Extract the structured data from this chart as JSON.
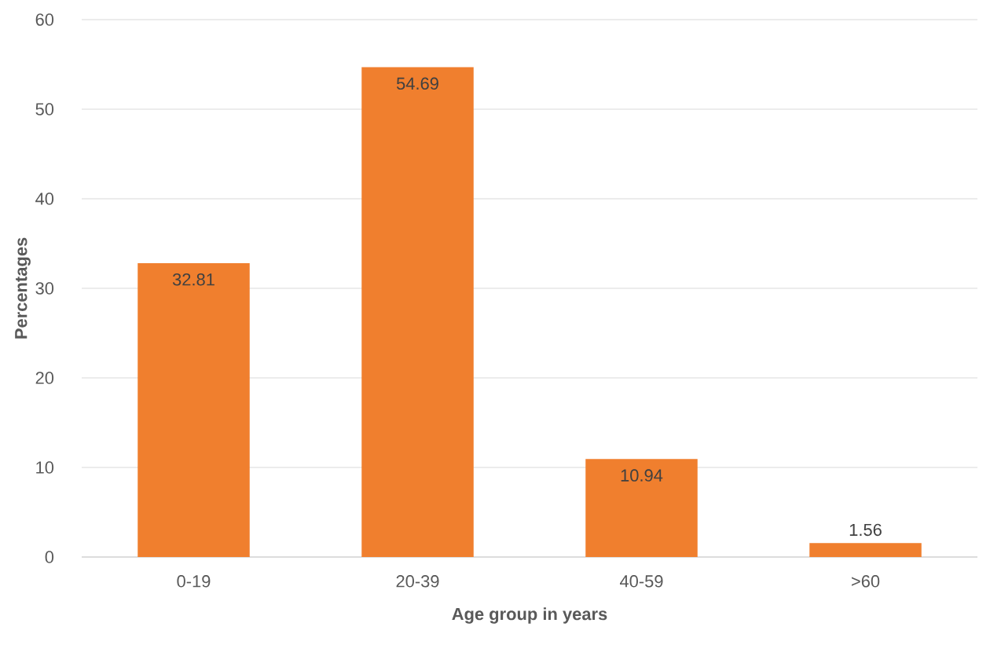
{
  "chart_data": {
    "type": "bar",
    "xlabel": "Age group in years",
    "ylabel": "Percentages",
    "categories": [
      "0-19",
      "20-39",
      "40-59",
      ">60"
    ],
    "values": [
      32.81,
      54.69,
      10.94,
      1.56
    ],
    "color": "#f07f2e",
    "ylim": [
      0,
      60
    ],
    "yticks": [
      0,
      10,
      20,
      30,
      40,
      50,
      60
    ],
    "grid": "y",
    "data_labels": true
  }
}
